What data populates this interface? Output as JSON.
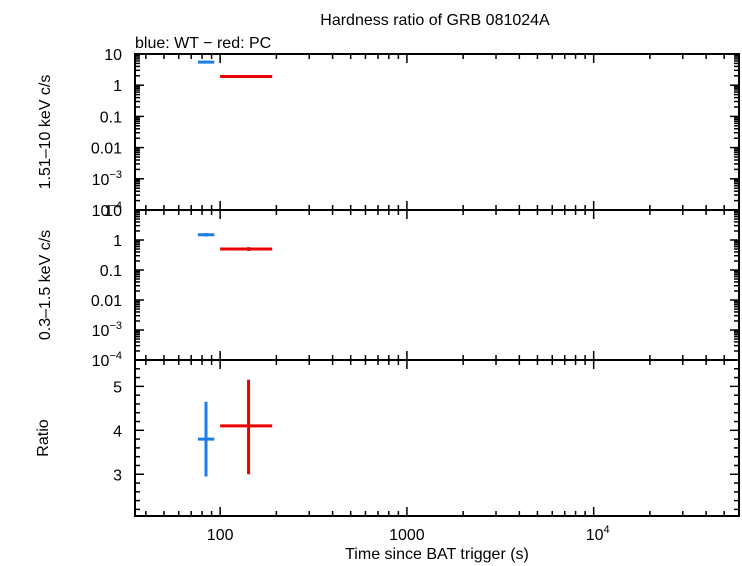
{
  "title": "Hardness ratio of GRB 081024A",
  "subtitle": "blue: WT − red: PC",
  "x_axis": {
    "label": "Time since BAT trigger (s)",
    "scale": "log",
    "range": [
      35,
      60000
    ],
    "ticks": [
      {
        "value": 100,
        "base": "100",
        "exp": ""
      },
      {
        "value": 1000,
        "base": "1000",
        "exp": ""
      },
      {
        "value": 10000,
        "base": "10",
        "exp": "4"
      }
    ]
  },
  "colors": {
    "wt": "#1a7ee6",
    "pc": "#e60000"
  },
  "chart_data": [
    {
      "type": "scatter",
      "panel": "hard",
      "ylabel": "1.51–10 keV c/s",
      "yscale": "log",
      "ylim": [
        0.0001,
        10
      ],
      "xscale": "log",
      "yticks": [
        {
          "value": 10,
          "base": "10",
          "exp": ""
        },
        {
          "value": 1,
          "base": "1",
          "exp": ""
        },
        {
          "value": 0.1,
          "base": "0.1",
          "exp": ""
        },
        {
          "value": 0.01,
          "base": "0.01",
          "exp": ""
        },
        {
          "value": 0.001,
          "base": "10",
          "exp": "−3"
        },
        {
          "value": 0.0001,
          "base": "10",
          "exp": "−4"
        }
      ],
      "series": [
        {
          "color_key": "wt",
          "points": [
            {
              "x": 84,
              "xerr": [
                76,
                93
              ],
              "y": 5.5,
              "yerr": [
                5.0,
                6.0
              ]
            }
          ]
        },
        {
          "color_key": "pc",
          "points": [
            {
              "x": 142,
              "xerr": [
                100,
                190
              ],
              "y": 1.9,
              "yerr": [
                1.7,
                2.1
              ]
            }
          ]
        }
      ]
    },
    {
      "type": "scatter",
      "panel": "soft",
      "ylabel": "0.3–1.5 keV c/s",
      "yscale": "log",
      "ylim": [
        0.0001,
        10
      ],
      "xscale": "log",
      "yticks": [
        {
          "value": 10,
          "base": "10",
          "exp": ""
        },
        {
          "value": 1,
          "base": "1",
          "exp": ""
        },
        {
          "value": 0.1,
          "base": "0.1",
          "exp": ""
        },
        {
          "value": 0.01,
          "base": "0.01",
          "exp": ""
        },
        {
          "value": 0.001,
          "base": "10",
          "exp": "−3"
        },
        {
          "value": 0.0001,
          "base": "10",
          "exp": "−4"
        }
      ],
      "series": [
        {
          "color_key": "wt",
          "points": [
            {
              "x": 84,
              "xerr": [
                76,
                93
              ],
              "y": 1.5,
              "yerr": [
                1.3,
                1.7
              ]
            }
          ]
        },
        {
          "color_key": "pc",
          "points": [
            {
              "x": 142,
              "xerr": [
                100,
                190
              ],
              "y": 0.5,
              "yerr": [
                0.43,
                0.58
              ]
            }
          ]
        }
      ]
    },
    {
      "type": "scatter",
      "panel": "ratio",
      "ylabel": "Ratio",
      "yscale": "linear",
      "ylim": [
        2.05,
        5.6
      ],
      "xscale": "log",
      "yticks": [
        {
          "value": 5,
          "base": "5",
          "exp": ""
        },
        {
          "value": 4,
          "base": "4",
          "exp": ""
        },
        {
          "value": 3,
          "base": "3",
          "exp": ""
        }
      ],
      "series": [
        {
          "color_key": "wt",
          "points": [
            {
              "x": 84,
              "xerr": [
                76,
                93
              ],
              "y": 3.8,
              "yerr": [
                2.95,
                4.65
              ]
            }
          ]
        },
        {
          "color_key": "pc",
          "points": [
            {
              "x": 142,
              "xerr": [
                100,
                190
              ],
              "y": 4.1,
              "yerr": [
                3.0,
                5.15
              ]
            }
          ]
        }
      ]
    }
  ]
}
